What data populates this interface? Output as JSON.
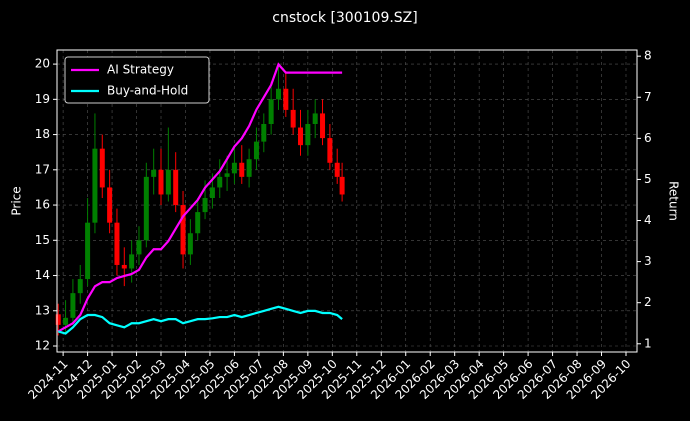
{
  "chart_data": {
    "type": "candlestick",
    "title": "cnstock [300109.SZ]",
    "ylabel": "Price",
    "y2label": "Return",
    "x": [
      -0.2,
      0.1,
      0.4,
      0.7,
      1.0,
      1.3,
      1.6,
      1.9,
      2.2,
      2.5,
      2.8,
      3.1,
      3.4,
      3.7,
      4.0,
      4.3,
      4.6,
      4.9,
      5.2,
      5.5,
      5.8,
      6.1,
      6.4,
      6.7,
      7.0,
      7.3,
      7.6,
      7.9,
      8.2,
      8.5,
      8.8,
      9.1,
      9.4,
      9.7,
      10.0,
      10.3,
      10.6,
      10.9,
      11.2,
      11.4
    ],
    "open": [
      12.9,
      12.6,
      12.8,
      13.5,
      13.9,
      15.5,
      17.6,
      16.5,
      15.5,
      14.3,
      14.2,
      14.6,
      15.0,
      16.8,
      17.0,
      16.3,
      17.0,
      16.0,
      14.6,
      15.2,
      15.8,
      16.2,
      16.5,
      16.8,
      16.9,
      17.2,
      16.8,
      17.3,
      17.8,
      18.3,
      19.0,
      19.3,
      18.7,
      18.2,
      17.7,
      18.3,
      18.6,
      17.9,
      17.2,
      16.8
    ],
    "high": [
      13.2,
      13.3,
      13.9,
      14.3,
      16.2,
      18.6,
      18.0,
      17.0,
      15.9,
      14.8,
      15.0,
      15.4,
      17.2,
      17.6,
      17.6,
      18.2,
      17.5,
      16.4,
      15.6,
      16.2,
      16.7,
      16.9,
      17.3,
      17.4,
      17.6,
      17.7,
      17.6,
      18.2,
      18.6,
      19.5,
      20.0,
      19.8,
      19.3,
      18.7,
      18.7,
      19.0,
      19.0,
      18.3,
      17.6,
      17.2
    ],
    "low": [
      12.3,
      12.4,
      12.6,
      13.2,
      13.7,
      15.2,
      16.2,
      15.2,
      14.0,
      13.7,
      13.8,
      14.3,
      14.8,
      16.3,
      16.0,
      16.1,
      15.8,
      14.2,
      14.3,
      15.0,
      15.6,
      15.9,
      16.2,
      16.4,
      16.6,
      16.6,
      16.5,
      17.0,
      17.5,
      18.0,
      18.7,
      18.5,
      18.0,
      17.4,
      17.4,
      17.9,
      17.7,
      17.0,
      16.6,
      16.1
    ],
    "close": [
      12.6,
      12.8,
      13.5,
      13.9,
      15.5,
      17.6,
      16.5,
      15.5,
      14.3,
      14.2,
      14.6,
      15.0,
      16.8,
      17.0,
      16.3,
      17.0,
      16.0,
      14.6,
      15.2,
      15.8,
      16.2,
      16.5,
      16.8,
      16.9,
      17.2,
      16.8,
      17.3,
      17.8,
      18.3,
      19.0,
      19.3,
      18.7,
      18.2,
      17.7,
      18.3,
      18.6,
      17.9,
      17.2,
      16.8,
      16.3
    ],
    "up_color": "#008000",
    "down_color": "#ff0000",
    "series": [
      {
        "name": "AI Strategy",
        "color": "#ff00ff",
        "axis": "y2",
        "values": [
          1.3,
          1.4,
          1.5,
          1.7,
          2.1,
          2.4,
          2.5,
          2.5,
          2.6,
          2.65,
          2.7,
          2.8,
          3.1,
          3.3,
          3.3,
          3.5,
          3.8,
          4.1,
          4.3,
          4.5,
          4.8,
          5.0,
          5.2,
          5.5,
          5.8,
          6.0,
          6.3,
          6.7,
          7.0,
          7.3,
          7.8,
          7.6,
          7.6,
          7.6,
          7.6,
          7.6,
          7.6,
          7.6,
          7.6,
          7.6
        ]
      },
      {
        "name": "Buy-and-Hold",
        "color": "#00ffff",
        "axis": "y2",
        "values": [
          1.3,
          1.25,
          1.4,
          1.6,
          1.7,
          1.7,
          1.65,
          1.5,
          1.45,
          1.4,
          1.5,
          1.5,
          1.55,
          1.6,
          1.55,
          1.6,
          1.6,
          1.5,
          1.55,
          1.6,
          1.6,
          1.62,
          1.65,
          1.65,
          1.7,
          1.65,
          1.7,
          1.75,
          1.8,
          1.85,
          1.9,
          1.85,
          1.8,
          1.75,
          1.8,
          1.8,
          1.75,
          1.75,
          1.7,
          1.6
        ]
      }
    ],
    "xlim": [
      -0.25,
      23.45
    ],
    "xticks": [
      {
        "value": 0,
        "label": "2024-11"
      },
      {
        "value": 1,
        "label": "2024-12"
      },
      {
        "value": 2,
        "label": "2025-01"
      },
      {
        "value": 3,
        "label": "2025-02"
      },
      {
        "value": 4,
        "label": "2025-03"
      },
      {
        "value": 5,
        "label": "2025-04"
      },
      {
        "value": 6,
        "label": "2025-05"
      },
      {
        "value": 7,
        "label": "2025-06"
      },
      {
        "value": 8,
        "label": "2025-07"
      },
      {
        "value": 9,
        "label": "2025-08"
      },
      {
        "value": 10,
        "label": "2025-09"
      },
      {
        "value": 11,
        "label": "2025-10"
      },
      {
        "value": 12,
        "label": "2025-11"
      },
      {
        "value": 13,
        "label": "2025-12"
      },
      {
        "value": 14,
        "label": "2026-01"
      },
      {
        "value": 15,
        "label": "2026-02"
      },
      {
        "value": 16,
        "label": "2026-03"
      },
      {
        "value": 17,
        "label": "2026-04"
      },
      {
        "value": 18,
        "label": "2026-05"
      },
      {
        "value": 19,
        "label": "2026-06"
      },
      {
        "value": 20,
        "label": "2026-07"
      },
      {
        "value": 21,
        "label": "2026-08"
      },
      {
        "value": 22,
        "label": "2026-09"
      },
      {
        "value": 23,
        "label": "2026-10"
      }
    ],
    "ylim": [
      11.83,
      20.4
    ],
    "yticks": [
      12,
      13,
      14,
      15,
      16,
      17,
      18,
      19,
      20
    ],
    "y2lim": [
      0.8,
      8.15
    ],
    "y2ticks": [
      1,
      2,
      3,
      4,
      5,
      6,
      7,
      8
    ],
    "grid": true,
    "legend": "upper-left"
  }
}
